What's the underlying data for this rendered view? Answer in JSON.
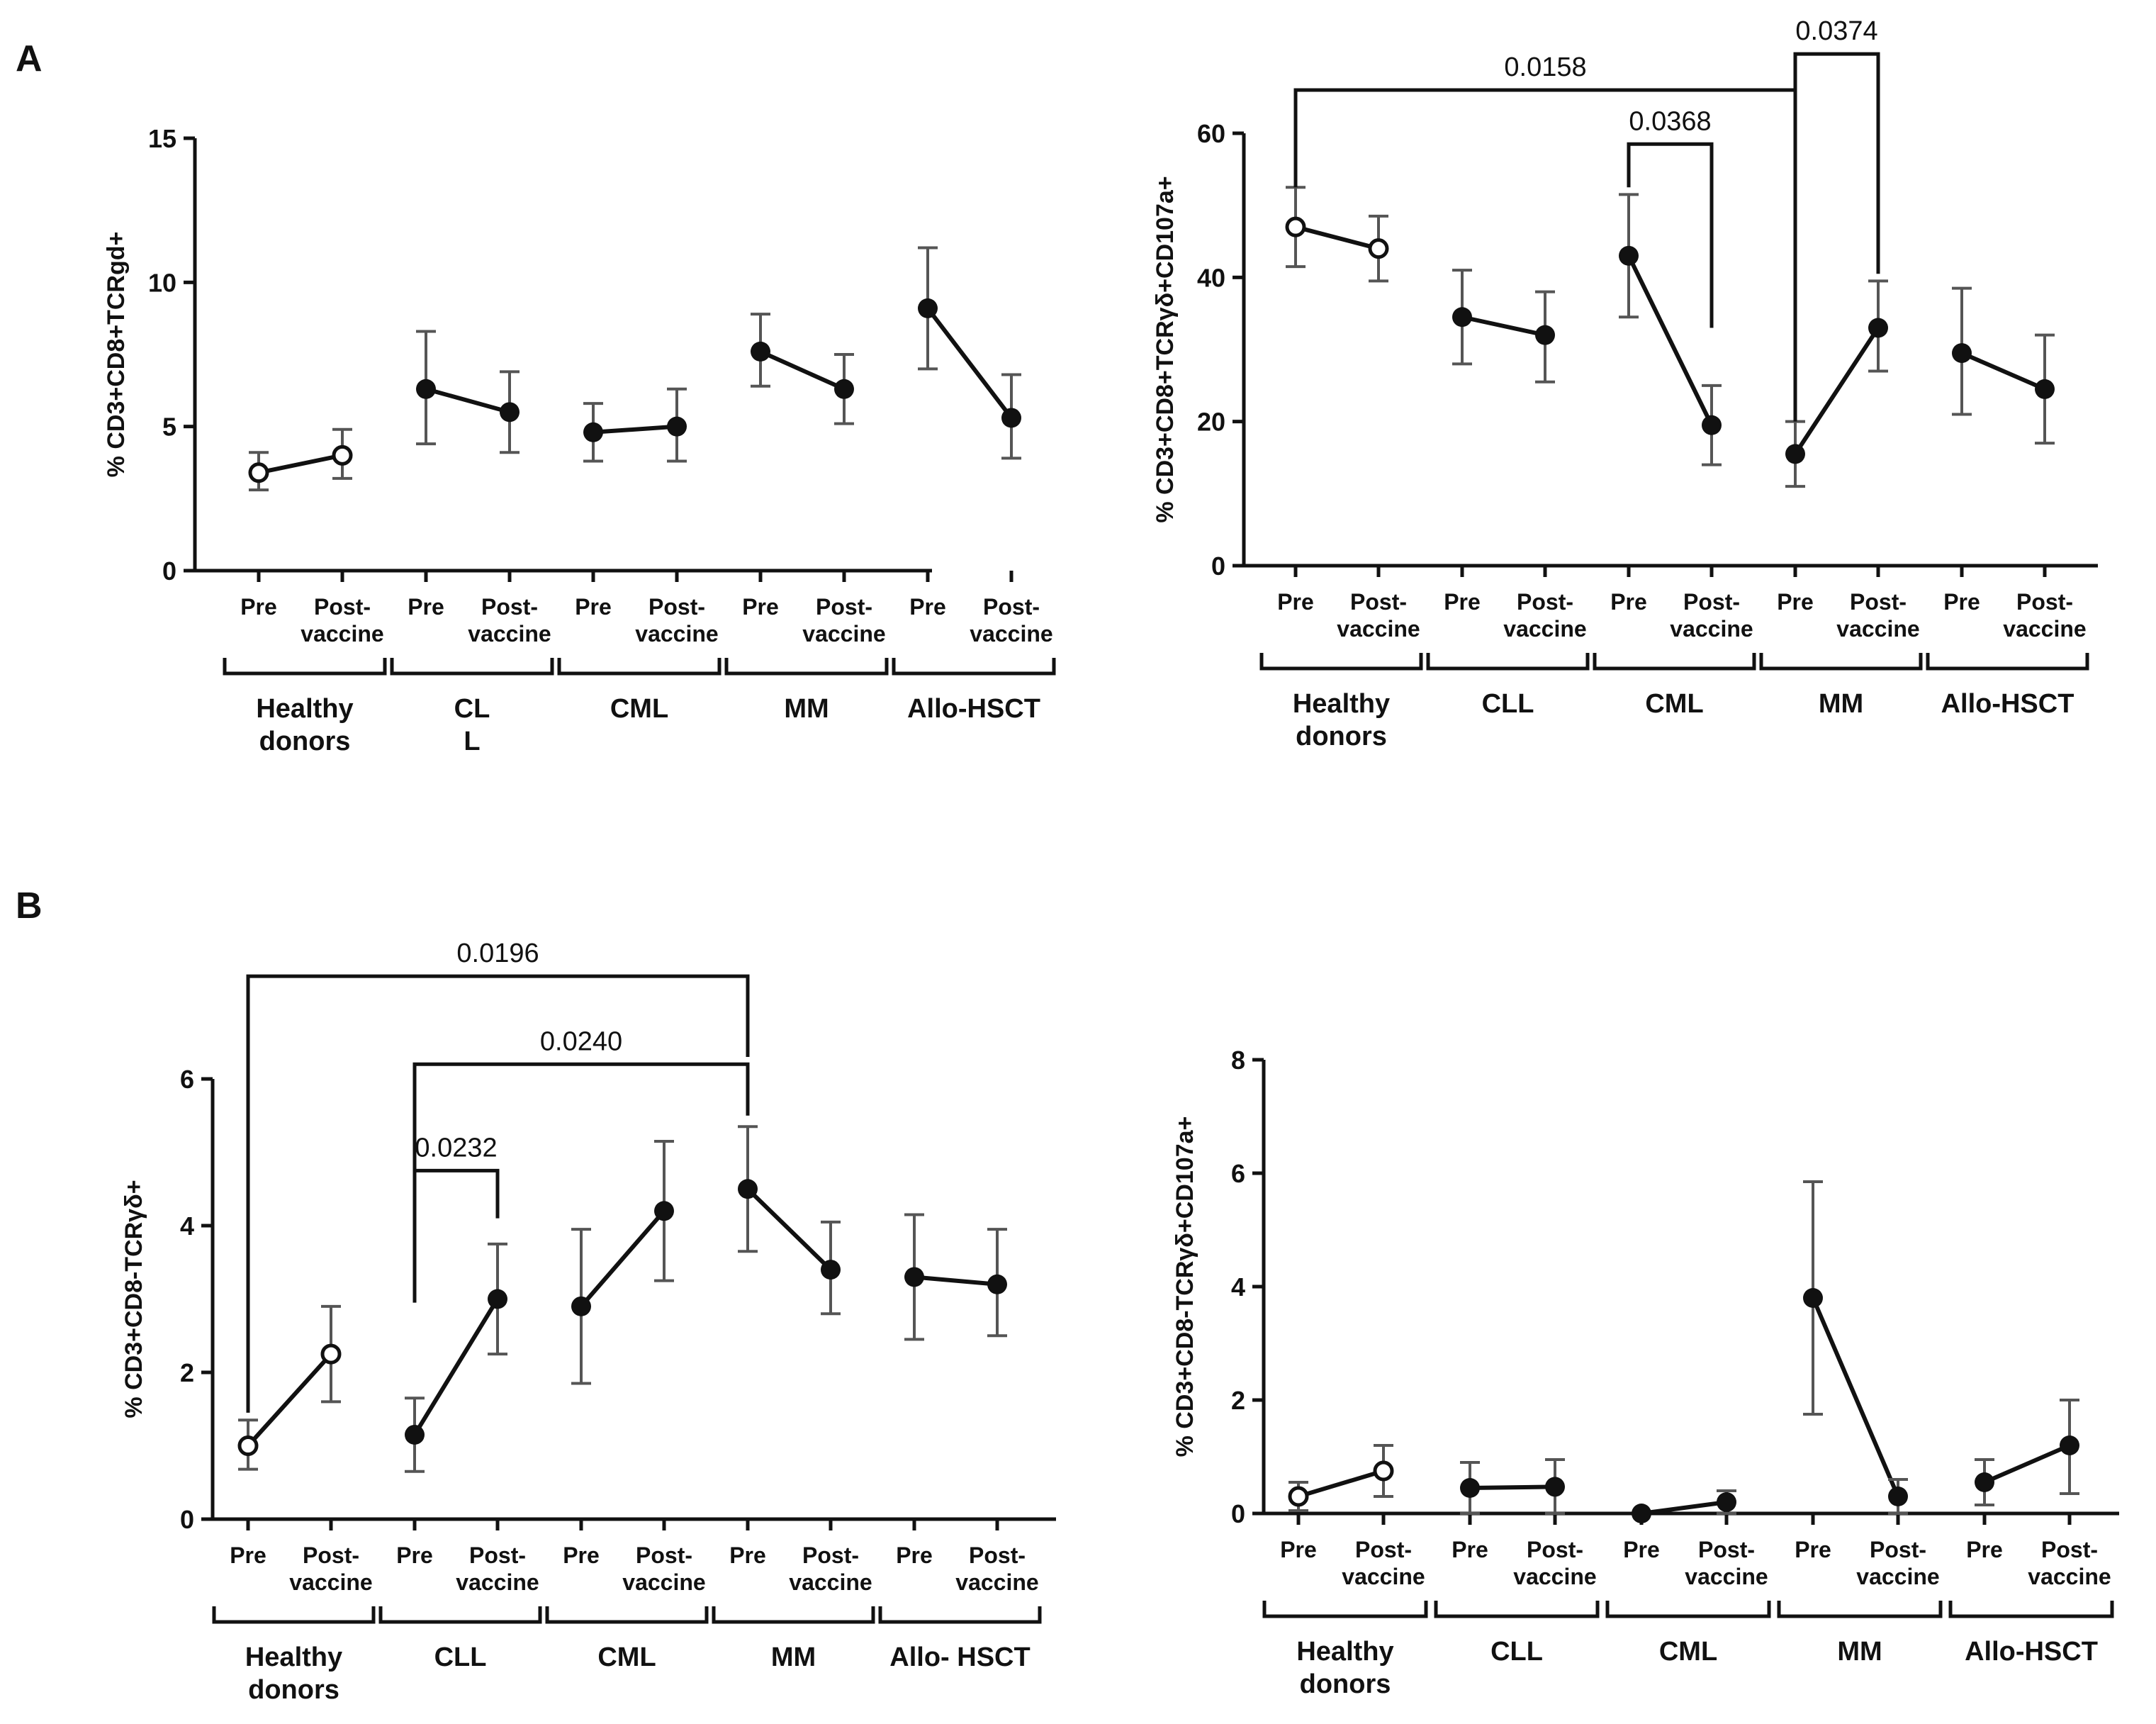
{
  "panel_labels": [
    "A",
    "B"
  ],
  "chart_data": [
    {
      "id": "A1",
      "type": "scatter",
      "ylabel": "% CD3+CD8+TCRgd+",
      "ylim": [
        0,
        15
      ],
      "yticks": [
        0,
        5,
        10,
        15
      ],
      "conditions": [
        "Pre",
        "Post-\nvaccine"
      ],
      "groups": [
        "Healthy\ndonors",
        "CL\nL",
        "CML",
        "MM",
        "Allo-HSCT"
      ],
      "series": [
        {
          "group": "Healthy donors",
          "marker": "open",
          "values": [
            3.4,
            4.0
          ],
          "err_low": [
            2.8,
            3.2
          ],
          "err_high": [
            4.1,
            4.9
          ]
        },
        {
          "group": "CLL",
          "marker": "filled",
          "values": [
            6.3,
            5.5
          ],
          "err_low": [
            4.4,
            4.1
          ],
          "err_high": [
            8.3,
            6.9
          ]
        },
        {
          "group": "CML",
          "marker": "filled",
          "values": [
            4.8,
            5.0
          ],
          "err_low": [
            3.8,
            3.8
          ],
          "err_high": [
            5.8,
            6.3
          ]
        },
        {
          "group": "MM",
          "marker": "filled",
          "values": [
            7.6,
            6.3
          ],
          "err_low": [
            6.4,
            5.1
          ],
          "err_high": [
            8.9,
            7.5
          ]
        },
        {
          "group": "Allo-HSCT",
          "marker": "filled",
          "values": [
            9.1,
            5.3
          ],
          "err_low": [
            7.0,
            3.9
          ],
          "err_high": [
            11.2,
            6.8
          ]
        }
      ],
      "brackets": []
    },
    {
      "id": "A2",
      "type": "scatter",
      "ylabel": "% CD3+CD8+TCRγδ+CD107a+",
      "ylim": [
        0,
        60
      ],
      "yticks": [
        0,
        20,
        40,
        60
      ],
      "conditions": [
        "Pre",
        "Post-\nvaccine"
      ],
      "groups": [
        "Healthy\ndonors",
        "CLL",
        "CML",
        "MM",
        "Allo-HSCT"
      ],
      "series": [
        {
          "group": "Healthy donors",
          "marker": "open",
          "values": [
            47.0,
            44.0
          ],
          "err_low": [
            41.5,
            39.5
          ],
          "err_high": [
            52.5,
            48.5
          ]
        },
        {
          "group": "CLL",
          "marker": "filled",
          "values": [
            34.5,
            32.0
          ],
          "err_low": [
            28.0,
            25.5
          ],
          "err_high": [
            41.0,
            38.0
          ]
        },
        {
          "group": "CML",
          "marker": "filled",
          "values": [
            43.0,
            19.5
          ],
          "err_low": [
            34.5,
            14.0
          ],
          "err_high": [
            51.5,
            25.0
          ]
        },
        {
          "group": "MM",
          "marker": "filled",
          "values": [
            15.5,
            33.0
          ],
          "err_low": [
            11.0,
            27.0
          ],
          "err_high": [
            20.0,
            39.5
          ]
        },
        {
          "group": "Allo-HSCT",
          "marker": "filled",
          "values": [
            29.5,
            24.5
          ],
          "err_low": [
            21.0,
            17.0
          ],
          "err_high": [
            38.5,
            32.0
          ]
        }
      ],
      "brackets": [
        {
          "label": "0.0158",
          "from": [
            0,
            0
          ],
          "to": [
            3,
            0
          ],
          "left_end": 52.5,
          "right_end": 20.0,
          "y": 66.0
        },
        {
          "label": "0.0374",
          "from": [
            3,
            0
          ],
          "to": [
            3,
            1
          ],
          "left_end": 66.0,
          "right_end": 40.5,
          "y": 71.0
        },
        {
          "label": "0.0368",
          "from": [
            2,
            0
          ],
          "to": [
            2,
            1
          ],
          "left_end": 52.5,
          "right_end": 33.0,
          "y": 58.5
        }
      ]
    },
    {
      "id": "B1",
      "type": "scatter",
      "ylabel": "% CD3+CD8-TCRγδ+",
      "ylim": [
        0,
        6
      ],
      "yticks": [
        0,
        2,
        4,
        6
      ],
      "conditions": [
        "Pre",
        "Post-\nvaccine"
      ],
      "groups": [
        "Healthy\ndonors",
        "CLL",
        "CML",
        "MM",
        "Allo- HSCT"
      ],
      "series": [
        {
          "group": "Healthy donors",
          "marker": "open",
          "values": [
            1.0,
            2.25
          ],
          "err_low": [
            0.68,
            1.6
          ],
          "err_high": [
            1.35,
            2.9
          ]
        },
        {
          "group": "CLL",
          "marker": "filled",
          "values": [
            1.15,
            3.0
          ],
          "err_low": [
            0.65,
            2.25
          ],
          "err_high": [
            1.65,
            3.75
          ]
        },
        {
          "group": "CML",
          "marker": "filled",
          "values": [
            2.9,
            4.2
          ],
          "err_low": [
            1.85,
            3.25
          ],
          "err_high": [
            3.95,
            5.15
          ]
        },
        {
          "group": "MM",
          "marker": "filled",
          "values": [
            4.5,
            3.4
          ],
          "err_low": [
            3.65,
            2.8
          ],
          "err_high": [
            5.35,
            4.05
          ]
        },
        {
          "group": "Allo- HSCT",
          "marker": "filled",
          "values": [
            3.3,
            3.2
          ],
          "err_low": [
            2.45,
            2.5
          ],
          "err_high": [
            4.15,
            3.95
          ]
        }
      ],
      "brackets": [
        {
          "label": "0.0196",
          "from": [
            0,
            0
          ],
          "to": [
            3,
            0
          ],
          "left_end": 1.45,
          "right_end": 6.3,
          "y": 7.4
        },
        {
          "label": "0.0240",
          "from": [
            1,
            0
          ],
          "to": [
            3,
            0
          ],
          "left_end": 2.95,
          "right_end": 5.5,
          "y": 6.2
        },
        {
          "label": "0.0232",
          "from": [
            1,
            0
          ],
          "to": [
            1,
            1
          ],
          "left_end": 4.4,
          "right_end": 4.1,
          "y": 4.75
        }
      ]
    },
    {
      "id": "B2",
      "type": "scatter",
      "ylabel": "% CD3+CD8-TCRγδ+CD107a+",
      "ylim": [
        0,
        8
      ],
      "yticks": [
        0,
        2,
        4,
        6,
        8
      ],
      "conditions": [
        "Pre",
        "Post-\nvaccine"
      ],
      "groups": [
        "Healthy\ndonors",
        "CLL",
        "CML",
        "MM",
        "Allo-HSCT"
      ],
      "series": [
        {
          "group": "Healthy donors",
          "marker": "open",
          "values": [
            0.3,
            0.75
          ],
          "err_low": [
            0.05,
            0.3
          ],
          "err_high": [
            0.55,
            1.2
          ]
        },
        {
          "group": "CLL",
          "marker": "filled",
          "values": [
            0.45,
            0.47
          ],
          "err_low": [
            0.0,
            0.0
          ],
          "err_high": [
            0.9,
            0.95
          ]
        },
        {
          "group": "CML",
          "marker": "filled",
          "values": [
            0.0,
            0.2
          ],
          "err_low": [
            0.0,
            0.0
          ],
          "err_high": [
            0.0,
            0.4
          ]
        },
        {
          "group": "MM",
          "marker": "filled",
          "values": [
            3.8,
            0.3
          ],
          "err_low": [
            1.75,
            0.0
          ],
          "err_high": [
            5.85,
            0.6
          ]
        },
        {
          "group": "Allo-HSCT",
          "marker": "filled",
          "values": [
            0.55,
            1.2
          ],
          "err_low": [
            0.15,
            0.35
          ],
          "err_high": [
            0.95,
            2.0
          ]
        }
      ],
      "brackets": []
    }
  ]
}
